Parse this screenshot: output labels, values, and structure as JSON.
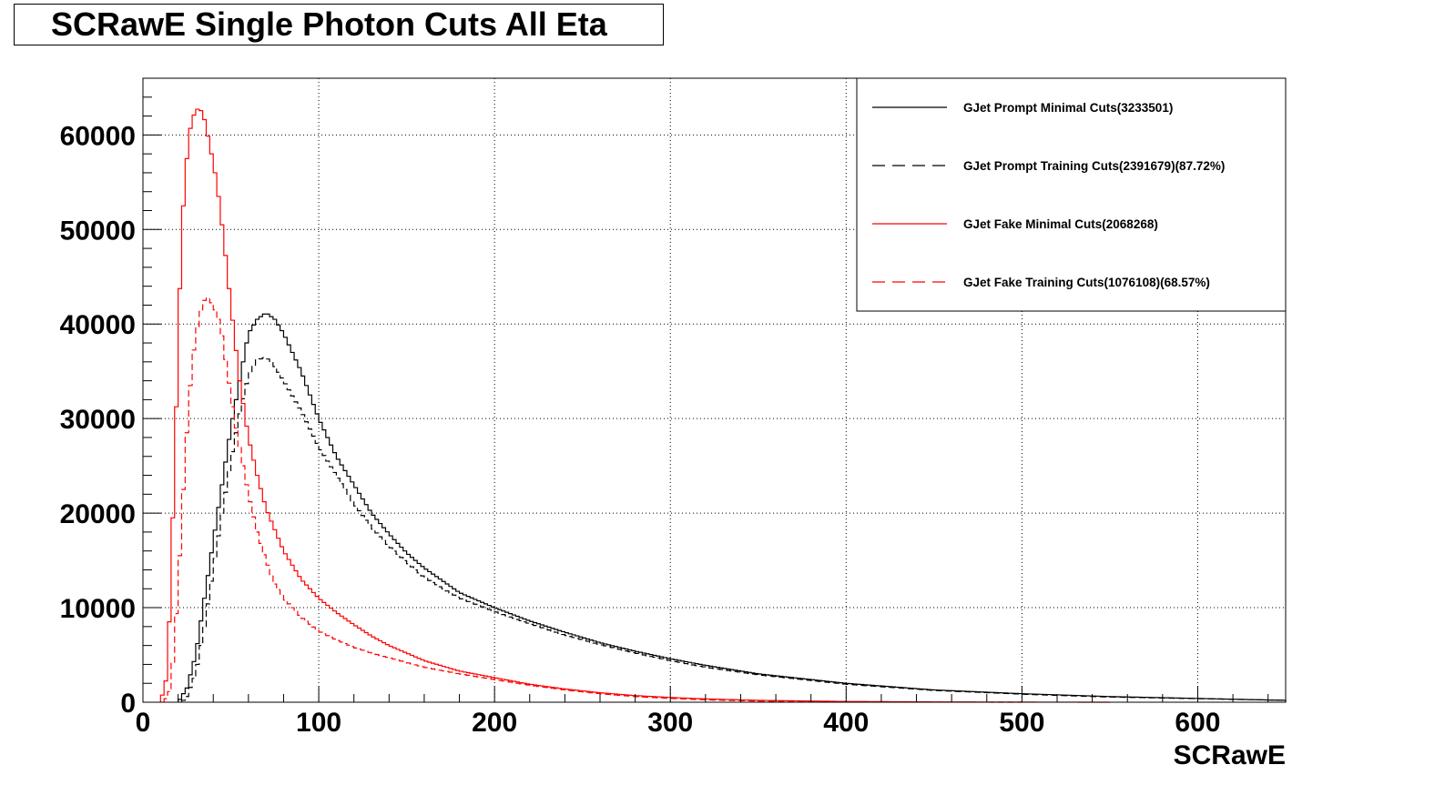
{
  "chart_data": {
    "type": "line",
    "title": "SCRawE Single Photon Cuts All Eta",
    "xlabel": "SCRawE",
    "ylabel": "",
    "xlim": [
      0,
      650
    ],
    "ylim": [
      0,
      66000
    ],
    "x_ticks": [
      0,
      100,
      200,
      300,
      400,
      500,
      600
    ],
    "y_ticks": [
      0,
      10000,
      20000,
      30000,
      40000,
      50000,
      60000
    ],
    "grid": true,
    "legend_position": "top-right",
    "series": [
      {
        "name": "GJet Prompt Minimal Cuts(3233501)",
        "color": "#000000",
        "dash": "solid",
        "x": [
          20,
          25,
          30,
          35,
          40,
          45,
          50,
          55,
          60,
          65,
          70,
          75,
          80,
          90,
          100,
          110,
          120,
          130,
          140,
          150,
          160,
          180,
          200,
          220,
          240,
          260,
          280,
          300,
          320,
          350,
          375,
          400,
          450,
          500,
          550,
          600,
          650
        ],
        "y": [
          0,
          1500,
          5000,
          11000,
          17000,
          23000,
          29000,
          34000,
          39000,
          40500,
          41200,
          40500,
          39000,
          35000,
          30000,
          26000,
          23000,
          20000,
          17800,
          15800,
          14200,
          11600,
          10000,
          8600,
          7400,
          6300,
          5400,
          4600,
          3900,
          3000,
          2500,
          2000,
          1300,
          900,
          600,
          400,
          200
        ]
      },
      {
        "name": "GJet Prompt Training Cuts(2391679)(87.72%)",
        "color": "#000000",
        "dash": "dashed",
        "x": [
          22,
          25,
          30,
          35,
          40,
          45,
          50,
          55,
          60,
          65,
          70,
          75,
          80,
          90,
          100,
          110,
          120,
          130,
          140,
          150,
          160,
          180,
          200,
          220,
          240,
          260,
          280,
          300,
          320,
          350,
          375,
          400,
          450,
          500,
          550,
          600,
          650
        ],
        "y": [
          0,
          600,
          3000,
          8000,
          14000,
          20000,
          25500,
          30500,
          34500,
          36200,
          36500,
          35500,
          34000,
          30800,
          27000,
          24000,
          21000,
          18500,
          16500,
          14800,
          13200,
          11000,
          9600,
          8300,
          7100,
          6100,
          5200,
          4400,
          3700,
          2900,
          2400,
          1900,
          1250,
          850,
          550,
          380,
          200
        ]
      },
      {
        "name": "GJet Fake Minimal Cuts(2068268)",
        "color": "#ff0000",
        "dash": "solid",
        "x": [
          10,
          14,
          18,
          22,
          26,
          30,
          34,
          38,
          42,
          46,
          50,
          55,
          60,
          65,
          70,
          80,
          90,
          100,
          110,
          120,
          130,
          140,
          150,
          160,
          180,
          200,
          220,
          240,
          260,
          280,
          300,
          320,
          350,
          400,
          450,
          500,
          550
        ],
        "y": [
          0,
          3000,
          25000,
          50000,
          60000,
          62800,
          62500,
          59000,
          55000,
          49000,
          42000,
          34000,
          28000,
          24000,
          20500,
          16000,
          13000,
          11000,
          9500,
          8200,
          7000,
          6000,
          5200,
          4400,
          3300,
          2600,
          1900,
          1400,
          1000,
          700,
          500,
          350,
          200,
          80,
          30,
          10,
          0
        ]
      },
      {
        "name": "GJet Fake Training Cuts(1076108)(68.57%)",
        "color": "#ff0000",
        "dash": "dashed",
        "x": [
          12,
          16,
          20,
          24,
          28,
          32,
          36,
          40,
          44,
          48,
          52,
          56,
          60,
          65,
          70,
          75,
          80,
          90,
          100,
          110,
          120,
          130,
          140,
          150,
          160,
          180,
          200,
          220,
          240,
          260,
          280,
          300,
          320,
          350,
          400,
          450,
          500
        ],
        "y": [
          0,
          1500,
          12000,
          26000,
          36000,
          41000,
          43000,
          42000,
          40000,
          35000,
          30000,
          26000,
          22000,
          18000,
          15000,
          12500,
          11000,
          9000,
          7500,
          6600,
          5800,
          5200,
          4700,
          4200,
          3700,
          3000,
          2400,
          1800,
          1300,
          900,
          600,
          400,
          250,
          120,
          40,
          10,
          0
        ]
      }
    ]
  }
}
